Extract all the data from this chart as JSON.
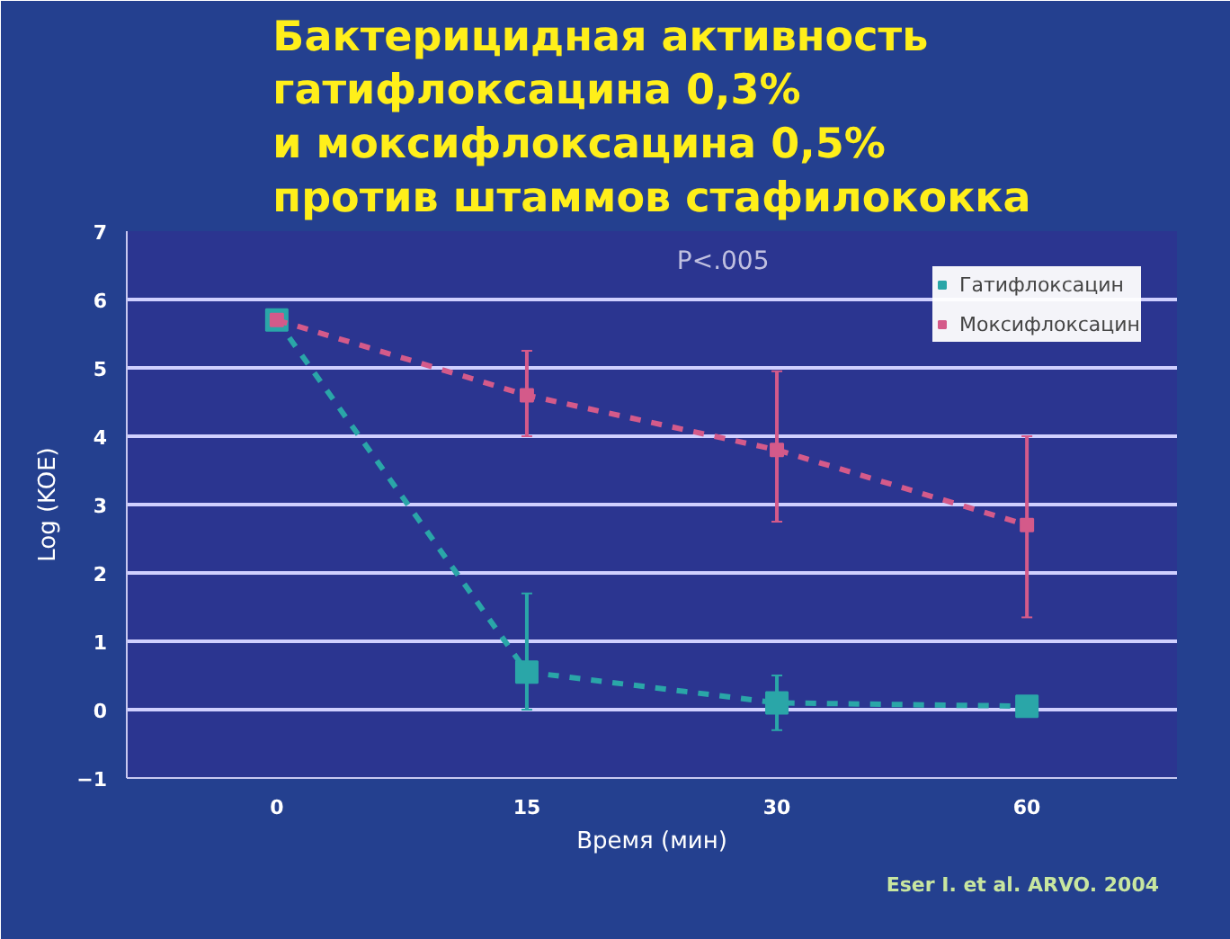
{
  "chart_data": {
    "type": "line",
    "title": "Бактерицидная активность\nгатифлоксацина 0,3%\nи моксифлоксацина 0,5%\nпротив штаммов стафилококка",
    "xlabel": "Время (мин)",
    "ylabel": "Log (KOE)",
    "categories": [
      "0",
      "15",
      "30",
      "60"
    ],
    "series": [
      {
        "name": "Гатифлоксацин",
        "color": "#2aa6a8",
        "values": [
          5.7,
          0.55,
          0.1,
          0.05
        ],
        "errors": [
          null,
          [
            0,
            1.7
          ],
          [
            -0.3,
            0.5
          ],
          null
        ]
      },
      {
        "name": "Моксифлоксацин",
        "color": "#d45a8a",
        "values": [
          5.7,
          4.6,
          3.8,
          2.7
        ],
        "errors": [
          null,
          [
            4.0,
            5.25
          ],
          [
            2.75,
            4.95
          ],
          [
            1.35,
            4.0
          ]
        ]
      }
    ],
    "ylim": [
      -1,
      7
    ],
    "yticks": [
      -1,
      0,
      1,
      2,
      3,
      4,
      5,
      6,
      7
    ],
    "grid": "y",
    "legend": "top right",
    "marker": "square",
    "line_style": "dashed",
    "annotations": [
      "P<.005",
      "Eser I. et al. ARVO. 2004"
    ]
  }
}
